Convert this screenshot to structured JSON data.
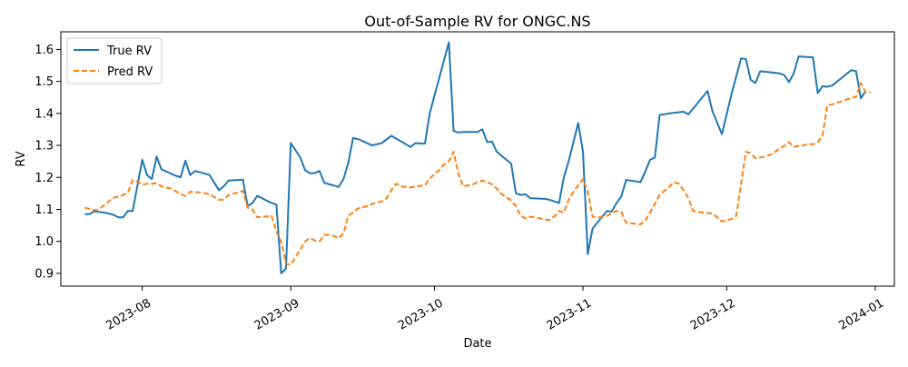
{
  "chart_data": {
    "type": "line",
    "title": "Out-of-Sample RV for ONGC.NS",
    "xlabel": "Date",
    "ylabel": "RV",
    "ylim": [
      0.86,
      1.655
    ],
    "xlim": [
      "2023-07-15",
      "2024-01-05"
    ],
    "grid": false,
    "legend_position": "top-left",
    "x_ticks": [
      "2023-08-01",
      "2023-09-01",
      "2023-10-01",
      "2023-11-01",
      "2023-12-01",
      "2024-01-01"
    ],
    "x_tick_labels": [
      "2023-08",
      "2023-09",
      "2023-10",
      "2023-11",
      "2023-12",
      "2024-01"
    ],
    "y_ticks": [
      0.9,
      1.0,
      1.1,
      1.2,
      1.3,
      1.4,
      1.5,
      1.6
    ],
    "y_tick_labels": [
      "0.9",
      "1.0",
      "1.1",
      "1.2",
      "1.3",
      "1.4",
      "1.5",
      "1.6"
    ],
    "series": [
      {
        "name": "True RV",
        "color": "#1f77b4",
        "style": "solid",
        "points": [
          [
            "2023-07-20",
            1.085
          ],
          [
            "2023-07-21",
            1.085
          ],
          [
            "2023-07-22",
            1.094
          ],
          [
            "2023-07-24",
            1.09
          ],
          [
            "2023-07-25",
            1.087
          ],
          [
            "2023-07-26",
            1.083
          ],
          [
            "2023-07-27",
            1.075
          ],
          [
            "2023-07-28",
            1.075
          ],
          [
            "2023-07-29",
            1.095
          ],
          [
            "2023-07-30",
            1.095
          ],
          [
            "2023-08-01",
            1.255
          ],
          [
            "2023-08-02",
            1.207
          ],
          [
            "2023-08-03",
            1.195
          ],
          [
            "2023-08-04",
            1.265
          ],
          [
            "2023-08-05",
            1.225
          ],
          [
            "2023-08-08",
            1.205
          ],
          [
            "2023-08-09",
            1.2
          ],
          [
            "2023-08-10",
            1.252
          ],
          [
            "2023-08-11",
            1.207
          ],
          [
            "2023-08-12",
            1.22
          ],
          [
            "2023-08-15",
            1.208
          ],
          [
            "2023-08-17",
            1.16
          ],
          [
            "2023-08-18",
            1.172
          ],
          [
            "2023-08-19",
            1.19
          ],
          [
            "2023-08-22",
            1.193
          ],
          [
            "2023-08-23",
            1.11
          ],
          [
            "2023-08-24",
            1.12
          ],
          [
            "2023-08-25",
            1.142
          ],
          [
            "2023-08-26",
            1.135
          ],
          [
            "2023-08-27",
            1.127
          ],
          [
            "2023-08-28",
            1.12
          ],
          [
            "2023-08-29",
            1.115
          ],
          [
            "2023-08-30",
            0.9
          ],
          [
            "2023-08-31",
            0.915
          ],
          [
            "2023-09-01",
            1.307
          ],
          [
            "2023-09-03",
            1.262
          ],
          [
            "2023-09-04",
            1.222
          ],
          [
            "2023-09-05",
            1.213
          ],
          [
            "2023-09-06",
            1.213
          ],
          [
            "2023-09-07",
            1.22
          ],
          [
            "2023-09-08",
            1.183
          ],
          [
            "2023-09-11",
            1.17
          ],
          [
            "2023-09-12",
            1.195
          ],
          [
            "2023-09-13",
            1.245
          ],
          [
            "2023-09-14",
            1.323
          ],
          [
            "2023-09-15",
            1.32
          ],
          [
            "2023-09-18",
            1.3
          ],
          [
            "2023-09-20",
            1.307
          ],
          [
            "2023-09-22",
            1.33
          ],
          [
            "2023-09-26",
            1.295
          ],
          [
            "2023-09-27",
            1.307
          ],
          [
            "2023-09-29",
            1.305
          ],
          [
            "2023-09-30",
            1.4
          ],
          [
            "2023-10-04",
            1.622
          ],
          [
            "2023-10-05",
            1.345
          ],
          [
            "2023-10-06",
            1.34
          ],
          [
            "2023-10-07",
            1.342
          ],
          [
            "2023-10-10",
            1.342
          ],
          [
            "2023-10-11",
            1.35
          ],
          [
            "2023-10-12",
            1.31
          ],
          [
            "2023-10-13",
            1.312
          ],
          [
            "2023-10-14",
            1.28
          ],
          [
            "2023-10-17",
            1.243
          ],
          [
            "2023-10-18",
            1.15
          ],
          [
            "2023-10-19",
            1.145
          ],
          [
            "2023-10-20",
            1.147
          ],
          [
            "2023-10-21",
            1.135
          ],
          [
            "2023-10-24",
            1.133
          ],
          [
            "2023-10-25",
            1.13
          ],
          [
            "2023-10-27",
            1.12
          ],
          [
            "2023-10-28",
            1.2
          ],
          [
            "2023-10-29",
            1.25
          ],
          [
            "2023-10-31",
            1.37
          ],
          [
            "2023-11-01",
            1.28
          ],
          [
            "2023-11-02",
            0.96
          ],
          [
            "2023-11-03",
            1.04
          ],
          [
            "2023-11-06",
            1.095
          ],
          [
            "2023-11-07",
            1.093
          ],
          [
            "2023-11-08",
            1.12
          ],
          [
            "2023-11-09",
            1.14
          ],
          [
            "2023-11-10",
            1.192
          ],
          [
            "2023-11-13",
            1.185
          ],
          [
            "2023-11-14",
            1.218
          ],
          [
            "2023-11-15",
            1.255
          ],
          [
            "2023-11-16",
            1.262
          ],
          [
            "2023-11-17",
            1.395
          ],
          [
            "2023-11-20",
            1.402
          ],
          [
            "2023-11-22",
            1.405
          ],
          [
            "2023-11-23",
            1.397
          ],
          [
            "2023-11-27",
            1.47
          ],
          [
            "2023-11-28",
            1.408
          ],
          [
            "2023-11-30",
            1.335
          ],
          [
            "2023-12-02",
            1.46
          ],
          [
            "2023-12-04",
            1.572
          ],
          [
            "2023-12-05",
            1.57
          ],
          [
            "2023-12-06",
            1.505
          ],
          [
            "2023-12-07",
            1.495
          ],
          [
            "2023-12-08",
            1.532
          ],
          [
            "2023-12-12",
            1.525
          ],
          [
            "2023-12-13",
            1.52
          ],
          [
            "2023-12-14",
            1.498
          ],
          [
            "2023-12-15",
            1.525
          ],
          [
            "2023-12-16",
            1.578
          ],
          [
            "2023-12-19",
            1.575
          ],
          [
            "2023-12-20",
            1.463
          ],
          [
            "2023-12-21",
            1.485
          ],
          [
            "2023-12-22",
            1.483
          ],
          [
            "2023-12-23",
            1.487
          ],
          [
            "2023-12-27",
            1.535
          ],
          [
            "2023-12-28",
            1.532
          ],
          [
            "2023-12-29",
            1.447
          ],
          [
            "2023-12-30",
            1.47
          ]
        ]
      },
      {
        "name": "Pred RV",
        "color": "#ff7f0e",
        "style": "dashed",
        "points": [
          [
            "2023-07-20",
            1.105
          ],
          [
            "2023-07-22",
            1.098
          ],
          [
            "2023-07-23",
            1.1
          ],
          [
            "2023-07-25",
            1.125
          ],
          [
            "2023-07-26",
            1.136
          ],
          [
            "2023-07-27",
            1.14
          ],
          [
            "2023-07-28",
            1.145
          ],
          [
            "2023-07-29",
            1.152
          ],
          [
            "2023-07-30",
            1.192
          ],
          [
            "2023-07-31",
            1.187
          ],
          [
            "2023-08-01",
            1.177
          ],
          [
            "2023-08-02",
            1.18
          ],
          [
            "2023-08-03",
            1.18
          ],
          [
            "2023-08-04",
            1.182
          ],
          [
            "2023-08-05",
            1.172
          ],
          [
            "2023-08-07",
            1.165
          ],
          [
            "2023-08-09",
            1.148
          ],
          [
            "2023-08-10",
            1.142
          ],
          [
            "2023-08-11",
            1.155
          ],
          [
            "2023-08-13",
            1.153
          ],
          [
            "2023-08-15",
            1.148
          ],
          [
            "2023-08-17",
            1.13
          ],
          [
            "2023-08-18",
            1.13
          ],
          [
            "2023-08-19",
            1.145
          ],
          [
            "2023-08-21",
            1.153
          ],
          [
            "2023-08-22",
            1.158
          ],
          [
            "2023-08-23",
            1.105
          ],
          [
            "2023-08-24",
            1.1
          ],
          [
            "2023-08-25",
            1.075
          ],
          [
            "2023-08-26",
            1.077
          ],
          [
            "2023-08-27",
            1.078
          ],
          [
            "2023-08-28",
            1.08
          ],
          [
            "2023-08-29",
            1.03
          ],
          [
            "2023-08-30",
            1.0
          ],
          [
            "2023-08-31",
            0.93
          ],
          [
            "2023-09-01",
            0.927
          ],
          [
            "2023-09-02",
            0.95
          ],
          [
            "2023-09-04",
            1.0
          ],
          [
            "2023-09-05",
            1.01
          ],
          [
            "2023-09-06",
            1.003
          ],
          [
            "2023-09-07",
            1.0
          ],
          [
            "2023-09-08",
            1.02
          ],
          [
            "2023-09-09",
            1.02
          ],
          [
            "2023-09-10",
            1.017
          ],
          [
            "2023-09-11",
            1.01
          ],
          [
            "2023-09-12",
            1.025
          ],
          [
            "2023-09-13",
            1.08
          ],
          [
            "2023-09-14",
            1.09
          ],
          [
            "2023-09-15",
            1.103
          ],
          [
            "2023-09-17",
            1.11
          ],
          [
            "2023-09-18",
            1.117
          ],
          [
            "2023-09-20",
            1.125
          ],
          [
            "2023-09-21",
            1.135
          ],
          [
            "2023-09-22",
            1.16
          ],
          [
            "2023-09-23",
            1.18
          ],
          [
            "2023-09-24",
            1.172
          ],
          [
            "2023-09-26",
            1.168
          ],
          [
            "2023-09-27",
            1.172
          ],
          [
            "2023-09-28",
            1.173
          ],
          [
            "2023-09-29",
            1.175
          ],
          [
            "2023-09-30",
            1.197
          ],
          [
            "2023-10-01",
            1.21
          ],
          [
            "2023-10-02",
            1.222
          ],
          [
            "2023-10-03",
            1.24
          ],
          [
            "2023-10-04",
            1.25
          ],
          [
            "2023-10-05",
            1.28
          ],
          [
            "2023-10-06",
            1.21
          ],
          [
            "2023-10-07",
            1.172
          ],
          [
            "2023-10-09",
            1.178
          ],
          [
            "2023-10-10",
            1.185
          ],
          [
            "2023-10-11",
            1.19
          ],
          [
            "2023-10-12",
            1.185
          ],
          [
            "2023-10-13",
            1.178
          ],
          [
            "2023-10-14",
            1.165
          ],
          [
            "2023-10-15",
            1.148
          ],
          [
            "2023-10-17",
            1.128
          ],
          [
            "2023-10-18",
            1.11
          ],
          [
            "2023-10-19",
            1.08
          ],
          [
            "2023-10-20",
            1.072
          ],
          [
            "2023-10-21",
            1.077
          ],
          [
            "2023-10-23",
            1.072
          ],
          [
            "2023-10-24",
            1.068
          ],
          [
            "2023-10-25",
            1.067
          ],
          [
            "2023-10-26",
            1.078
          ],
          [
            "2023-10-27",
            1.095
          ],
          [
            "2023-10-28",
            1.09
          ],
          [
            "2023-10-29",
            1.13
          ],
          [
            "2023-10-30",
            1.155
          ],
          [
            "2023-10-31",
            1.175
          ],
          [
            "2023-11-01",
            1.195
          ],
          [
            "2023-11-02",
            1.155
          ],
          [
            "2023-11-03",
            1.077
          ],
          [
            "2023-11-04",
            1.075
          ],
          [
            "2023-11-05",
            1.075
          ],
          [
            "2023-11-06",
            1.08
          ],
          [
            "2023-11-08",
            1.095
          ],
          [
            "2023-11-09",
            1.092
          ],
          [
            "2023-11-10",
            1.058
          ],
          [
            "2023-11-12",
            1.055
          ],
          [
            "2023-11-13",
            1.053
          ],
          [
            "2023-11-14",
            1.065
          ],
          [
            "2023-11-15",
            1.09
          ],
          [
            "2023-11-17",
            1.145
          ],
          [
            "2023-11-18",
            1.158
          ],
          [
            "2023-11-19",
            1.17
          ],
          [
            "2023-11-20",
            1.185
          ],
          [
            "2023-11-21",
            1.18
          ],
          [
            "2023-11-22",
            1.16
          ],
          [
            "2023-11-23",
            1.135
          ],
          [
            "2023-11-24",
            1.095
          ],
          [
            "2023-11-26",
            1.09
          ],
          [
            "2023-11-28",
            1.087
          ],
          [
            "2023-11-29",
            1.075
          ],
          [
            "2023-11-30",
            1.062
          ],
          [
            "2023-12-02",
            1.07
          ],
          [
            "2023-12-03",
            1.08
          ],
          [
            "2023-12-04",
            1.18
          ],
          [
            "2023-12-05",
            1.28
          ],
          [
            "2023-12-06",
            1.275
          ],
          [
            "2023-12-07",
            1.26
          ],
          [
            "2023-12-08",
            1.262
          ],
          [
            "2023-12-09",
            1.265
          ],
          [
            "2023-12-10",
            1.27
          ],
          [
            "2023-12-11",
            1.278
          ],
          [
            "2023-12-12",
            1.29
          ],
          [
            "2023-12-13",
            1.298
          ],
          [
            "2023-12-14",
            1.31
          ],
          [
            "2023-12-15",
            1.295
          ],
          [
            "2023-12-16",
            1.298
          ],
          [
            "2023-12-17",
            1.3
          ],
          [
            "2023-12-18",
            1.305
          ],
          [
            "2023-12-19",
            1.303
          ],
          [
            "2023-12-20",
            1.31
          ],
          [
            "2023-12-21",
            1.33
          ],
          [
            "2023-12-22",
            1.425
          ],
          [
            "2023-12-23",
            1.428
          ],
          [
            "2023-12-25",
            1.438
          ],
          [
            "2023-12-27",
            1.448
          ],
          [
            "2023-12-28",
            1.452
          ],
          [
            "2023-12-29",
            1.495
          ],
          [
            "2023-12-30",
            1.465
          ],
          [
            "2023-12-31",
            1.465
          ]
        ]
      }
    ]
  }
}
